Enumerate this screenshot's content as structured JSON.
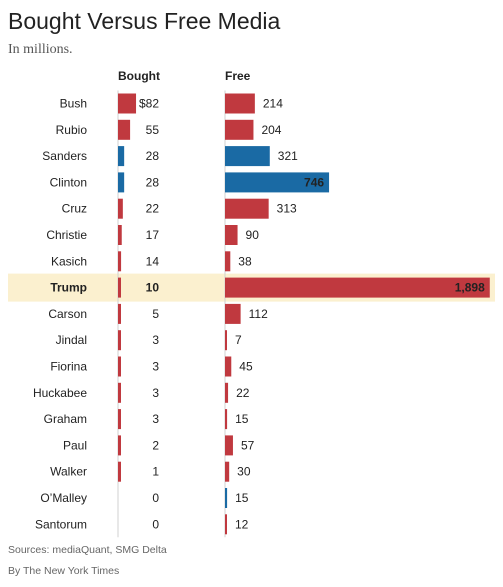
{
  "title": "Bought Versus Free Media",
  "subtitle": "In millions.",
  "sources": "Sources: mediaQuant, SMG Delta",
  "credit": "By The New York Times",
  "colors": {
    "republican": "#c0393f",
    "democrat": "#1a6aa4",
    "highlight": "#fbf0cf",
    "axis": "#d0d0d0"
  },
  "chart_data": {
    "type": "bar",
    "column_headers": [
      "Bought",
      "Free"
    ],
    "highlighted": "Trump",
    "series": [
      {
        "name": "Bought",
        "values": [
          82,
          55,
          28,
          28,
          22,
          17,
          14,
          10,
          5,
          3,
          3,
          3,
          3,
          2,
          1,
          0,
          0
        ],
        "labels": [
          "$82",
          "55",
          "28",
          "28",
          "22",
          "17",
          "14",
          "10",
          "5",
          "3",
          "3",
          "3",
          "3",
          "2",
          "1",
          "0",
          "0"
        ]
      },
      {
        "name": "Free",
        "values": [
          214,
          204,
          321,
          746,
          313,
          90,
          38,
          1898,
          112,
          7,
          45,
          22,
          15,
          57,
          30,
          15,
          12
        ],
        "labels": [
          "214",
          "204",
          "321",
          "746",
          "313",
          "90",
          "38",
          "1,898",
          "112",
          "7",
          "45",
          "22",
          "15",
          "57",
          "30",
          "15",
          "12"
        ]
      }
    ],
    "categories": [
      "Bush",
      "Rubio",
      "Sanders",
      "Clinton",
      "Cruz",
      "Christie",
      "Kasich",
      "Trump",
      "Carson",
      "Jindal",
      "Fiorina",
      "Huckabee",
      "Graham",
      "Paul",
      "Walker",
      "O’Malley",
      "Santorum"
    ],
    "party": [
      "R",
      "R",
      "D",
      "D",
      "R",
      "R",
      "R",
      "R",
      "R",
      "R",
      "R",
      "R",
      "R",
      "R",
      "R",
      "D",
      "R"
    ]
  }
}
